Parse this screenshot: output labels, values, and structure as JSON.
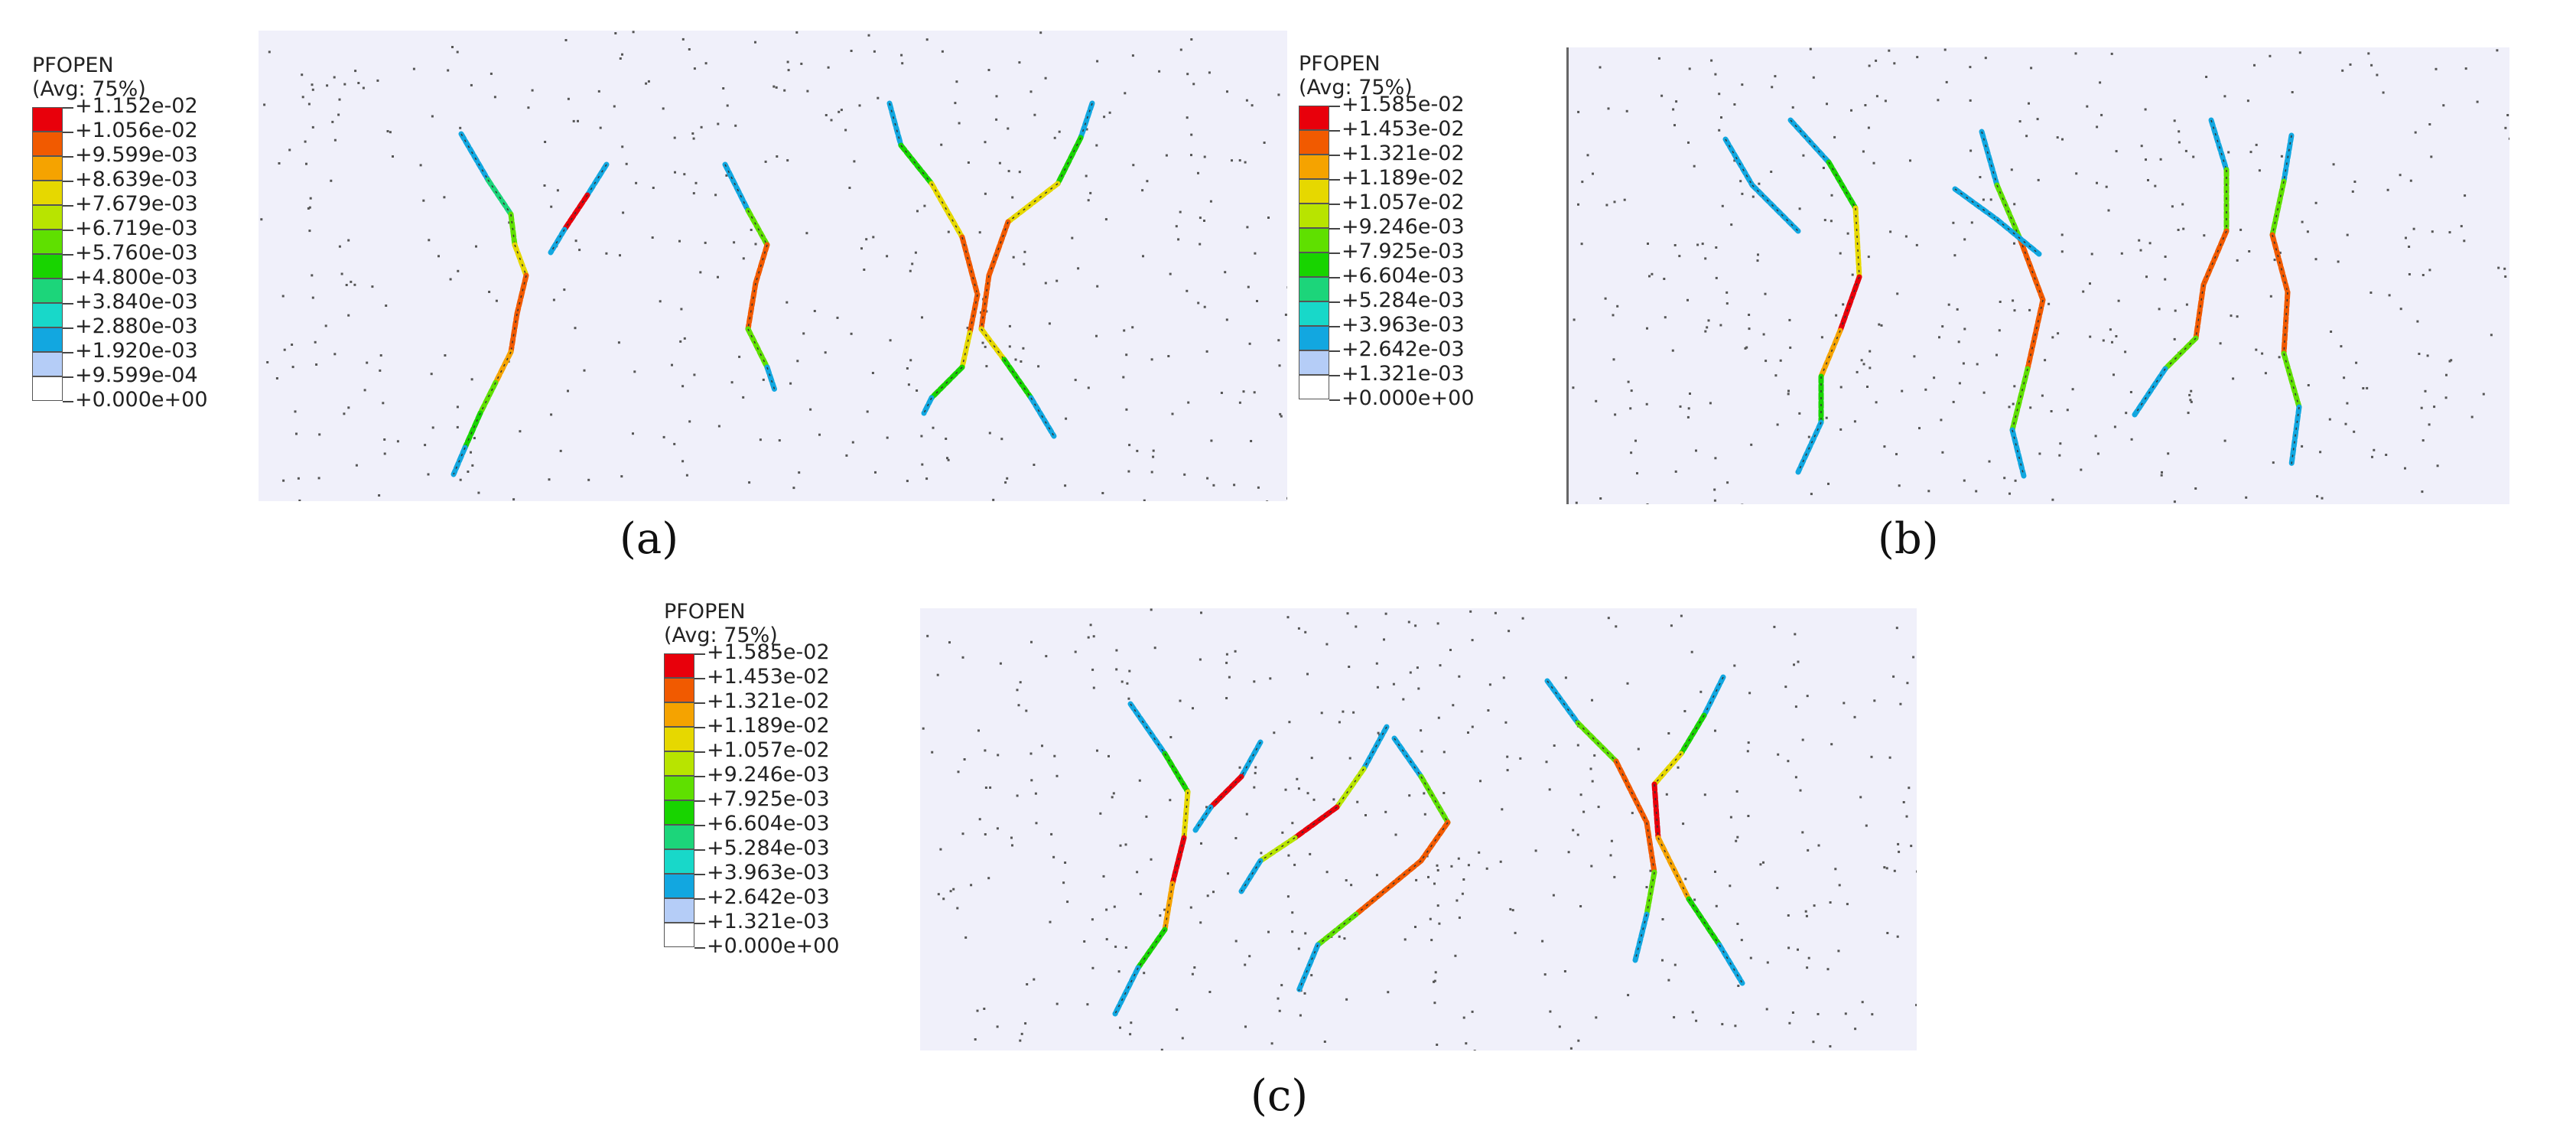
{
  "panels": [
    {
      "id": "a",
      "caption": "(a)",
      "legend": {
        "title": "PFOPEN",
        "avg": "(Avg: 75%)",
        "labels": [
          "+1.152e-02",
          "+1.056e-02",
          "+9.599e-03",
          "+8.639e-03",
          "+7.679e-03",
          "+6.719e-03",
          "+5.760e-03",
          "+4.800e-03",
          "+3.840e-03",
          "+2.880e-03",
          "+1.920e-03",
          "+9.599e-04",
          "+0.000e+00"
        ]
      }
    },
    {
      "id": "b",
      "caption": "(b)",
      "legend": {
        "title": "PFOPEN",
        "avg": "(Avg: 75%)",
        "labels": [
          "+1.585e-02",
          "+1.453e-02",
          "+1.321e-02",
          "+1.189e-02",
          "+1.057e-02",
          "+9.246e-03",
          "+7.925e-03",
          "+6.604e-03",
          "+5.284e-03",
          "+3.963e-03",
          "+2.642e-03",
          "+1.321e-03",
          "+0.000e+00"
        ]
      }
    },
    {
      "id": "c",
      "caption": "(c)",
      "legend": {
        "title": "PFOPEN",
        "avg": "(Avg: 75%)",
        "labels": [
          "+1.585e-02",
          "+1.453e-02",
          "+1.321e-02",
          "+1.189e-02",
          "+1.057e-02",
          "+9.246e-03",
          "+7.925e-03",
          "+6.604e-03",
          "+5.284e-03",
          "+3.963e-03",
          "+2.642e-03",
          "+1.321e-03",
          "+0.000e+00"
        ]
      }
    }
  ],
  "colors": {
    "scale": [
      "#e8000b",
      "#f15a00",
      "#f5a300",
      "#e6d800",
      "#b8e400",
      "#5fe000",
      "#18d400",
      "#1cd57a",
      "#18d8c9",
      "#12a7e0",
      "#b5cdf7",
      "#ffffff"
    ],
    "field_background": "#f0f0fa",
    "dots": "#555555"
  }
}
